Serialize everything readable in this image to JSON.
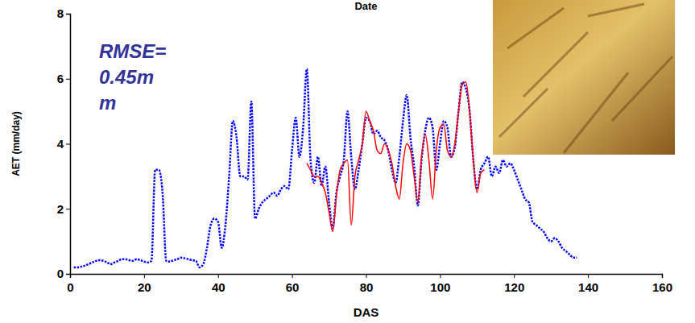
{
  "chart_data": {
    "type": "line",
    "title": "Date",
    "x_label": "DAS",
    "y_label": "AET (mm/day)",
    "annotations": [
      "RMSE=",
      "0.45m",
      "m"
    ],
    "x": [
      1,
      2,
      3,
      4,
      5,
      6,
      7,
      8,
      9,
      10,
      11,
      12,
      13,
      14,
      15,
      16,
      17,
      18,
      19,
      20,
      21,
      22,
      23,
      24,
      25,
      26,
      27,
      28,
      29,
      30,
      31,
      32,
      33,
      34,
      35,
      36,
      37,
      38,
      39,
      40,
      41,
      42,
      43,
      44,
      45,
      46,
      47,
      48,
      49,
      50,
      51,
      52,
      53,
      54,
      55,
      56,
      57,
      58,
      59,
      60,
      61,
      62,
      63,
      64,
      65,
      66,
      67,
      68,
      69,
      70,
      71,
      72,
      73,
      74,
      75,
      76,
      77,
      78,
      79,
      80,
      81,
      82,
      83,
      84,
      85,
      86,
      87,
      88,
      89,
      90,
      91,
      92,
      93,
      94,
      95,
      96,
      97,
      98,
      99,
      100,
      101,
      102,
      103,
      104,
      105,
      106,
      107,
      108,
      109,
      110,
      111,
      112,
      113,
      114,
      115,
      116,
      117,
      118,
      119,
      120,
      121,
      122,
      123,
      124,
      125,
      126,
      127,
      128,
      129,
      130,
      131,
      132,
      133,
      134,
      135,
      136,
      137
    ],
    "series": [
      {
        "color": "#0000ff",
        "line_style": "dotted",
        "values": [
          0.2,
          0.2,
          0.22,
          0.25,
          0.3,
          0.35,
          0.4,
          0.42,
          0.4,
          0.35,
          0.3,
          0.35,
          0.4,
          0.45,
          0.45,
          0.42,
          0.4,
          0.45,
          0.42,
          0.38,
          0.35,
          0.4,
          3.2,
          3.2,
          2.5,
          0.4,
          0.38,
          0.42,
          0.45,
          0.5,
          0.48,
          0.45,
          0.42,
          0.4,
          0.2,
          0.3,
          0.8,
          1.5,
          1.7,
          1.6,
          0.8,
          1.5,
          3.0,
          4.7,
          4.2,
          3.0,
          3.0,
          2.9,
          5.3,
          1.7,
          2.0,
          2.2,
          2.3,
          2.4,
          2.5,
          2.4,
          2.6,
          2.7,
          2.6,
          3.8,
          4.8,
          3.6,
          4.5,
          6.3,
          3.5,
          2.8,
          3.6,
          2.7,
          3.3,
          2.2,
          1.4,
          2.5,
          3.0,
          3.5,
          5.0,
          3.6,
          2.6,
          3.2,
          4.0,
          4.8,
          4.7,
          4.3,
          4.4,
          4.2,
          4.1,
          3.8,
          3.2,
          2.8,
          3.6,
          4.7,
          5.5,
          4.2,
          3.3,
          2.1,
          3.5,
          4.4,
          4.8,
          4.5,
          3.2,
          4.0,
          4.7,
          4.5,
          3.6,
          3.9,
          5.0,
          5.9,
          5.7,
          5.0,
          3.5,
          2.6,
          3.2,
          3.4,
          3.6,
          3.0,
          3.3,
          3.1,
          3.5,
          3.3,
          3.4,
          3.2,
          2.9,
          2.6,
          2.3,
          2.2,
          1.6,
          1.5,
          1.4,
          1.3,
          1.1,
          1.0,
          1.1,
          1.0,
          0.8,
          0.7,
          0.6,
          0.5,
          0.5
        ]
      },
      {
        "color": "#ff0000",
        "line_style": "solid",
        "values": [
          null,
          null,
          null,
          null,
          null,
          null,
          null,
          null,
          null,
          null,
          null,
          null,
          null,
          null,
          null,
          null,
          null,
          null,
          null,
          null,
          null,
          null,
          null,
          null,
          null,
          null,
          null,
          null,
          null,
          null,
          null,
          null,
          null,
          null,
          null,
          null,
          null,
          null,
          null,
          null,
          null,
          null,
          null,
          null,
          null,
          null,
          null,
          null,
          null,
          null,
          null,
          null,
          null,
          null,
          null,
          null,
          null,
          null,
          null,
          null,
          null,
          null,
          null,
          3.4,
          3.2,
          3.0,
          3.0,
          2.8,
          2.5,
          1.9,
          1.3,
          2.4,
          3.2,
          3.4,
          3.5,
          1.5,
          3.0,
          3.5,
          4.0,
          5.0,
          4.7,
          4.4,
          3.8,
          3.7,
          4.0,
          3.8,
          3.4,
          2.7,
          2.3,
          3.4,
          4.0,
          3.8,
          3.0,
          2.2,
          3.6,
          4.3,
          3.5,
          2.3,
          3.8,
          4.5,
          4.6,
          3.8,
          3.6,
          4.0,
          5.0,
          5.8,
          5.9,
          5.0,
          3.5,
          2.5,
          3.1,
          3.2,
          null,
          null,
          null,
          null,
          null,
          null,
          null,
          null,
          null,
          null,
          null,
          null,
          null,
          null,
          null,
          null,
          null,
          null,
          null,
          null,
          null,
          null,
          null,
          null,
          null
        ]
      }
    ],
    "xlim": [
      0,
      160
    ],
    "xticks": [
      0,
      20,
      40,
      60,
      80,
      100,
      120,
      140,
      160
    ],
    "ylim": [
      0,
      8
    ],
    "yticks": [
      0,
      2,
      4,
      6,
      8
    ],
    "grid": false
  }
}
